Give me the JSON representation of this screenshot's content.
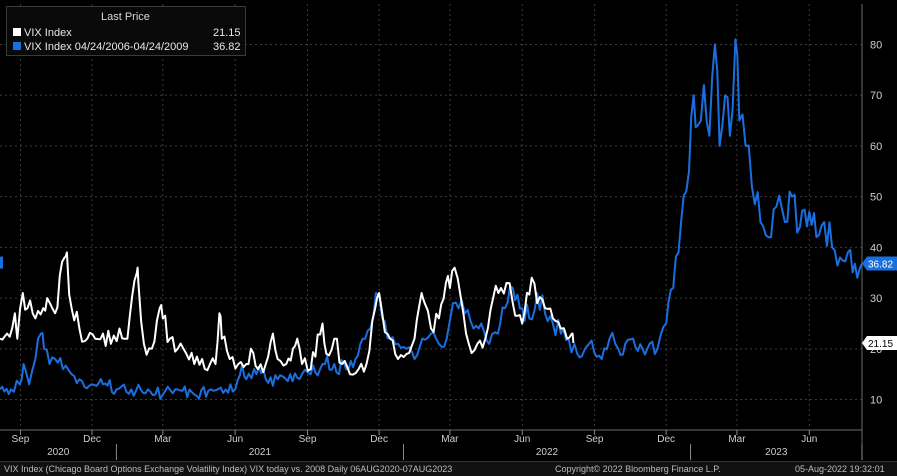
{
  "legend": {
    "header": "Last Price",
    "items": [
      {
        "name": "VIX Index",
        "value": "21.15",
        "color": "#ffffff"
      },
      {
        "name": "VIX Index 04/24/2006-04/24/2009",
        "value": "36.82",
        "color": "#1a6fe0"
      }
    ]
  },
  "footer": {
    "left": "VIX Index (Chicago Board Options Exchange Volatility Index) VIX today vs. 2008  Daily 06AUG2020-07AUG2023",
    "center": "Copyright© 2022 Bloomberg Finance L.P.",
    "right": "05-Aug-2022 19:32:01"
  },
  "chart_data": {
    "type": "line",
    "x_domain": [
      "2020-08-06",
      "2023-08-07"
    ],
    "ylim": [
      4,
      86
    ],
    "y_ticks": [
      10,
      20,
      30,
      40,
      50,
      60,
      70,
      80
    ],
    "x_month_ticks": [
      {
        "date": "2020-09-01",
        "label": "Sep"
      },
      {
        "date": "2020-12-01",
        "label": "Dec"
      },
      {
        "date": "2021-03-01",
        "label": "Mar"
      },
      {
        "date": "2021-06-01",
        "label": "Jun"
      },
      {
        "date": "2021-09-01",
        "label": "Sep"
      },
      {
        "date": "2021-12-01",
        "label": "Dec"
      },
      {
        "date": "2022-03-01",
        "label": "Mar"
      },
      {
        "date": "2022-06-01",
        "label": "Jun"
      },
      {
        "date": "2022-09-01",
        "label": "Sep"
      },
      {
        "date": "2022-12-01",
        "label": "Dec"
      },
      {
        "date": "2023-03-01",
        "label": "Mar"
      },
      {
        "date": "2023-06-01",
        "label": "Jun"
      }
    ],
    "x_year_labels": [
      {
        "date": "2021-01-01",
        "label": "2020"
      },
      {
        "date": "2022-01-01",
        "label": "2021"
      },
      {
        "date": "2023-01-01",
        "label": "2022"
      },
      {
        "date": "2024-01-01",
        "label": "2023"
      }
    ],
    "end_labels": [
      "36.82",
      "21.15"
    ],
    "grid": true,
    "y_axis_side": "right",
    "legend_position": "top-left",
    "series": [
      {
        "name": "VIX Index",
        "color": "#ffffff",
        "points": [
          [
            "2020-08-06",
            22
          ],
          [
            "2020-08-15",
            23
          ],
          [
            "2020-08-25",
            27
          ],
          [
            "2020-08-28",
            22
          ],
          [
            "2020-09-04",
            31
          ],
          [
            "2020-09-10",
            28
          ],
          [
            "2020-09-20",
            26
          ],
          [
            "2020-09-30",
            28
          ],
          [
            "2020-10-05",
            30
          ],
          [
            "2020-10-15",
            27
          ],
          [
            "2020-10-27",
            38
          ],
          [
            "2020-10-30",
            39
          ],
          [
            "2020-11-05",
            28
          ],
          [
            "2020-11-15",
            24
          ],
          [
            "2020-11-25",
            22
          ],
          [
            "2020-12-05",
            22
          ],
          [
            "2020-12-15",
            23
          ],
          [
            "2020-12-25",
            21
          ],
          [
            "2021-01-05",
            24
          ],
          [
            "2021-01-15",
            22
          ],
          [
            "2021-01-27",
            35
          ],
          [
            "2021-01-29",
            33
          ],
          [
            "2021-02-05",
            21
          ],
          [
            "2021-02-15",
            20
          ],
          [
            "2021-02-25",
            28
          ],
          [
            "2021-03-01",
            26
          ],
          [
            "2021-03-10",
            22
          ],
          [
            "2021-03-20",
            20
          ],
          [
            "2021-03-31",
            19
          ],
          [
            "2021-04-10",
            17
          ],
          [
            "2021-04-20",
            18
          ],
          [
            "2021-04-30",
            17
          ],
          [
            "2021-05-07",
            17
          ],
          [
            "2021-05-12",
            27
          ],
          [
            "2021-05-15",
            22
          ],
          [
            "2021-05-25",
            18
          ],
          [
            "2021-06-05",
            17
          ],
          [
            "2021-06-15",
            17
          ],
          [
            "2021-06-21",
            20
          ],
          [
            "2021-06-30",
            16
          ],
          [
            "2021-07-10",
            17
          ],
          [
            "2021-07-19",
            23
          ],
          [
            "2021-07-25",
            18
          ],
          [
            "2021-08-05",
            17
          ],
          [
            "2021-08-19",
            22
          ],
          [
            "2021-08-25",
            17
          ],
          [
            "2021-09-05",
            16
          ],
          [
            "2021-09-20",
            25
          ],
          [
            "2021-09-25",
            19
          ],
          [
            "2021-10-05",
            22
          ],
          [
            "2021-10-15",
            17
          ],
          [
            "2021-10-25",
            15
          ],
          [
            "2021-11-05",
            16
          ],
          [
            "2021-11-15",
            17
          ],
          [
            "2021-11-26",
            28
          ],
          [
            "2021-12-01",
            31
          ],
          [
            "2021-12-05",
            27
          ],
          [
            "2021-12-15",
            22
          ],
          [
            "2021-12-25",
            18
          ],
          [
            "2022-01-05",
            19
          ],
          [
            "2022-01-15",
            22
          ],
          [
            "2022-01-24",
            31
          ],
          [
            "2022-01-28",
            29
          ],
          [
            "2022-02-05",
            24
          ],
          [
            "2022-02-15",
            26
          ],
          [
            "2022-02-24",
            33
          ],
          [
            "2022-03-01",
            32
          ],
          [
            "2022-03-07",
            36
          ],
          [
            "2022-03-15",
            30
          ],
          [
            "2022-03-25",
            21
          ],
          [
            "2022-04-05",
            21
          ],
          [
            "2022-04-15",
            22
          ],
          [
            "2022-04-25",
            30
          ],
          [
            "2022-05-05",
            32
          ],
          [
            "2022-05-12",
            33
          ],
          [
            "2022-05-20",
            29
          ],
          [
            "2022-06-01",
            25
          ],
          [
            "2022-06-13",
            34
          ],
          [
            "2022-06-20",
            29
          ],
          [
            "2022-06-30",
            28
          ],
          [
            "2022-07-10",
            26
          ],
          [
            "2022-07-20",
            24
          ],
          [
            "2022-07-28",
            22
          ],
          [
            "2022-08-03",
            23
          ],
          [
            "2022-08-05",
            21.15
          ]
        ]
      },
      {
        "name": "VIX Index 04/24/2006-04/24/2009",
        "color": "#1a6fe0",
        "points": [
          [
            "2020-08-06",
            12
          ],
          [
            "2020-08-20",
            12
          ],
          [
            "2020-08-31",
            13
          ],
          [
            "2020-09-05",
            17
          ],
          [
            "2020-09-12",
            13
          ],
          [
            "2020-09-20",
            18
          ],
          [
            "2020-09-27",
            23
          ],
          [
            "2020-10-01",
            20
          ],
          [
            "2020-10-08",
            17
          ],
          [
            "2020-10-15",
            18
          ],
          [
            "2020-10-25",
            16
          ],
          [
            "2020-11-05",
            15
          ],
          [
            "2020-11-15",
            14
          ],
          [
            "2020-12-01",
            13
          ],
          [
            "2020-12-15",
            13
          ],
          [
            "2021-01-01",
            12
          ],
          [
            "2021-01-20",
            12
          ],
          [
            "2021-02-10",
            12
          ],
          [
            "2021-03-01",
            11
          ],
          [
            "2021-03-20",
            12
          ],
          [
            "2021-04-10",
            11
          ],
          [
            "2021-05-01",
            12
          ],
          [
            "2021-05-20",
            12
          ],
          [
            "2021-06-01",
            12
          ],
          [
            "2021-06-10",
            17
          ],
          [
            "2021-06-15",
            14
          ],
          [
            "2021-06-25",
            16
          ],
          [
            "2021-07-10",
            14
          ],
          [
            "2021-07-25",
            14
          ],
          [
            "2021-08-10",
            15
          ],
          [
            "2021-08-25",
            15
          ],
          [
            "2021-09-05",
            15
          ],
          [
            "2021-09-20",
            17
          ],
          [
            "2021-10-05",
            17
          ],
          [
            "2021-10-20",
            16
          ],
          [
            "2021-11-01",
            18
          ],
          [
            "2021-11-10",
            22
          ],
          [
            "2021-11-20",
            24
          ],
          [
            "2021-11-27",
            31
          ],
          [
            "2021-12-05",
            26
          ],
          [
            "2021-12-15",
            22
          ],
          [
            "2021-12-25",
            21
          ],
          [
            "2022-01-05",
            20
          ],
          [
            "2022-01-15",
            18
          ],
          [
            "2022-01-25",
            22
          ],
          [
            "2022-02-05",
            23
          ],
          [
            "2022-02-15",
            21
          ],
          [
            "2022-02-25",
            22
          ],
          [
            "2022-03-05",
            29
          ],
          [
            "2022-03-12",
            28
          ],
          [
            "2022-03-20",
            27
          ],
          [
            "2022-03-31",
            24
          ],
          [
            "2022-04-10",
            25
          ],
          [
            "2022-04-20",
            21
          ],
          [
            "2022-05-01",
            23
          ],
          [
            "2022-05-10",
            28
          ],
          [
            "2022-05-20",
            32
          ],
          [
            "2022-06-01",
            28
          ],
          [
            "2022-06-10",
            26
          ],
          [
            "2022-06-20",
            31
          ],
          [
            "2022-06-30",
            27
          ],
          [
            "2022-07-10",
            25
          ],
          [
            "2022-07-20",
            23
          ],
          [
            "2022-07-30",
            22
          ],
          [
            "2022-08-10",
            19
          ],
          [
            "2022-08-25",
            21
          ],
          [
            "2022-09-10",
            18
          ],
          [
            "2022-09-20",
            22
          ],
          [
            "2022-10-01",
            20
          ],
          [
            "2022-10-10",
            21
          ],
          [
            "2022-10-20",
            22
          ],
          [
            "2022-11-01",
            20
          ],
          [
            "2022-11-10",
            21
          ],
          [
            "2022-11-20",
            20
          ],
          [
            "2022-12-01",
            25
          ],
          [
            "2022-12-10",
            32
          ],
          [
            "2022-12-20",
            45
          ],
          [
            "2022-12-30",
            55
          ],
          [
            "2023-01-05",
            70
          ],
          [
            "2023-01-10",
            64
          ],
          [
            "2023-01-18",
            72
          ],
          [
            "2023-01-25",
            62
          ],
          [
            "2023-02-01",
            80
          ],
          [
            "2023-02-07",
            60
          ],
          [
            "2023-02-14",
            70
          ],
          [
            "2023-02-20",
            62
          ],
          [
            "2023-02-27",
            81
          ],
          [
            "2023-03-04",
            65
          ],
          [
            "2023-03-12",
            60
          ],
          [
            "2023-03-20",
            52
          ],
          [
            "2023-03-31",
            45
          ],
          [
            "2023-04-10",
            42
          ],
          [
            "2023-04-20",
            48
          ],
          [
            "2023-05-01",
            45
          ],
          [
            "2023-05-10",
            50
          ],
          [
            "2023-05-20",
            44
          ],
          [
            "2023-06-01",
            47
          ],
          [
            "2023-06-10",
            42
          ],
          [
            "2023-06-20",
            45
          ],
          [
            "2023-06-30",
            40
          ],
          [
            "2023-07-10",
            38
          ],
          [
            "2023-07-20",
            39
          ],
          [
            "2023-08-01",
            34
          ],
          [
            "2023-08-07",
            36.82
          ]
        ]
      }
    ]
  }
}
